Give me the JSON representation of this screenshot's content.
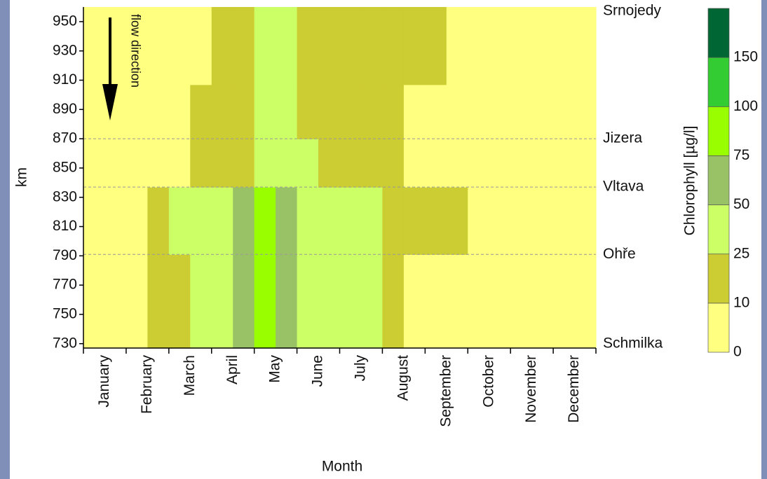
{
  "chart_data": {
    "type": "contour",
    "x_label": "Month",
    "y_label": "km",
    "colorbar_label": "Chlorophyll [µg/l]",
    "annotation": "flow direction",
    "categories": [
      "January",
      "February",
      "March",
      "April",
      "May",
      "June",
      "July",
      "August",
      "September",
      "October",
      "November",
      "December"
    ],
    "ylim": [
      727,
      960
    ],
    "yticks": [
      730,
      750,
      770,
      790,
      810,
      830,
      850,
      870,
      890,
      910,
      930,
      950
    ],
    "ybins": [
      727,
      791,
      837,
      870,
      907,
      960
    ],
    "z": [
      [
        5,
        5,
        5,
        15,
        15,
        30,
        30,
        60,
        80,
        60,
        30,
        30,
        30,
        30,
        15,
        5,
        5,
        5,
        5,
        5,
        5,
        5,
        5,
        5
      ],
      [
        5,
        5,
        5,
        15,
        30,
        30,
        30,
        60,
        80,
        60,
        30,
        30,
        30,
        30,
        15,
        15,
        15,
        15,
        5,
        5,
        5,
        5,
        5,
        5
      ],
      [
        5,
        5,
        5,
        5,
        5,
        15,
        15,
        15,
        30,
        30,
        30,
        15,
        15,
        15,
        15,
        5,
        5,
        5,
        5,
        5,
        5,
        5,
        5,
        5
      ],
      [
        5,
        5,
        5,
        5,
        5,
        15,
        15,
        15,
        30,
        30,
        15,
        15,
        15,
        15,
        15,
        5,
        5,
        5,
        5,
        5,
        5,
        5,
        5,
        5
      ],
      [
        5,
        5,
        5,
        5,
        5,
        5,
        15,
        15,
        30,
        30,
        15,
        15,
        15,
        15,
        15,
        15,
        15,
        5,
        5,
        5,
        5,
        5,
        5,
        5
      ]
    ],
    "levels": [
      0,
      10,
      25,
      50,
      75,
      100,
      150
    ],
    "colors": [
      "#ffff80",
      "#cccc33",
      "#ccff66",
      "#99c266",
      "#99ff00",
      "#33cc33",
      "#006633"
    ],
    "locations": [
      {
        "name": "Srnojedy",
        "km": 960,
        "line": false
      },
      {
        "name": "Jizera",
        "km": 870,
        "line": true
      },
      {
        "name": "Vltava",
        "km": 837,
        "line": true
      },
      {
        "name": "Ohře",
        "km": 791,
        "line": true
      },
      {
        "name": "Schmilka",
        "km": 730,
        "line": false
      }
    ]
  }
}
